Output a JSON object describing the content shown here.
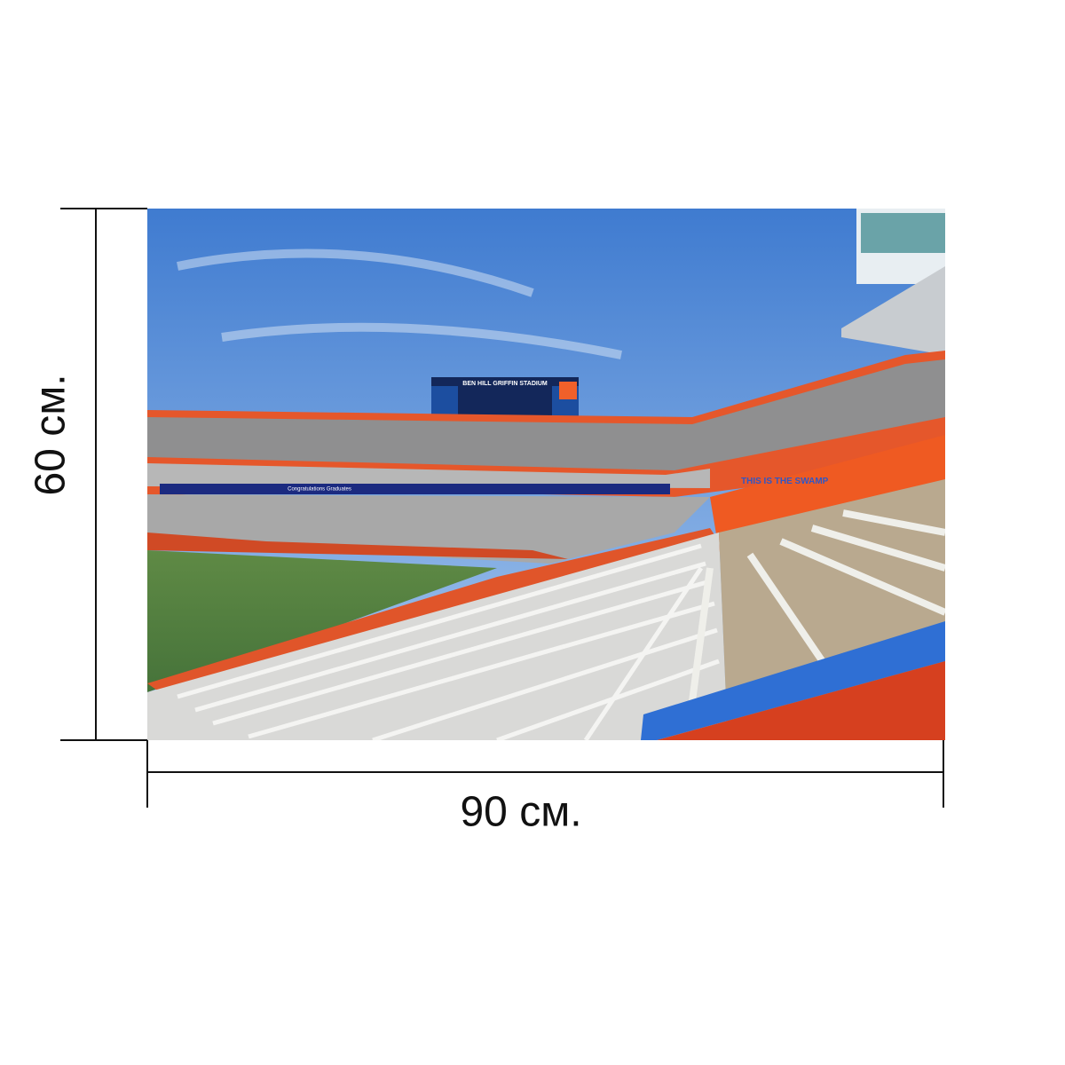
{
  "dimensions": {
    "height_label": "60 см.",
    "width_label": "90 см."
  },
  "photo": {
    "scoreboard_title": "BEN HILL GRIFFIN STADIUM",
    "banner": "Congratulations Graduates",
    "wall_text": "THIS IS THE SWAMP"
  }
}
